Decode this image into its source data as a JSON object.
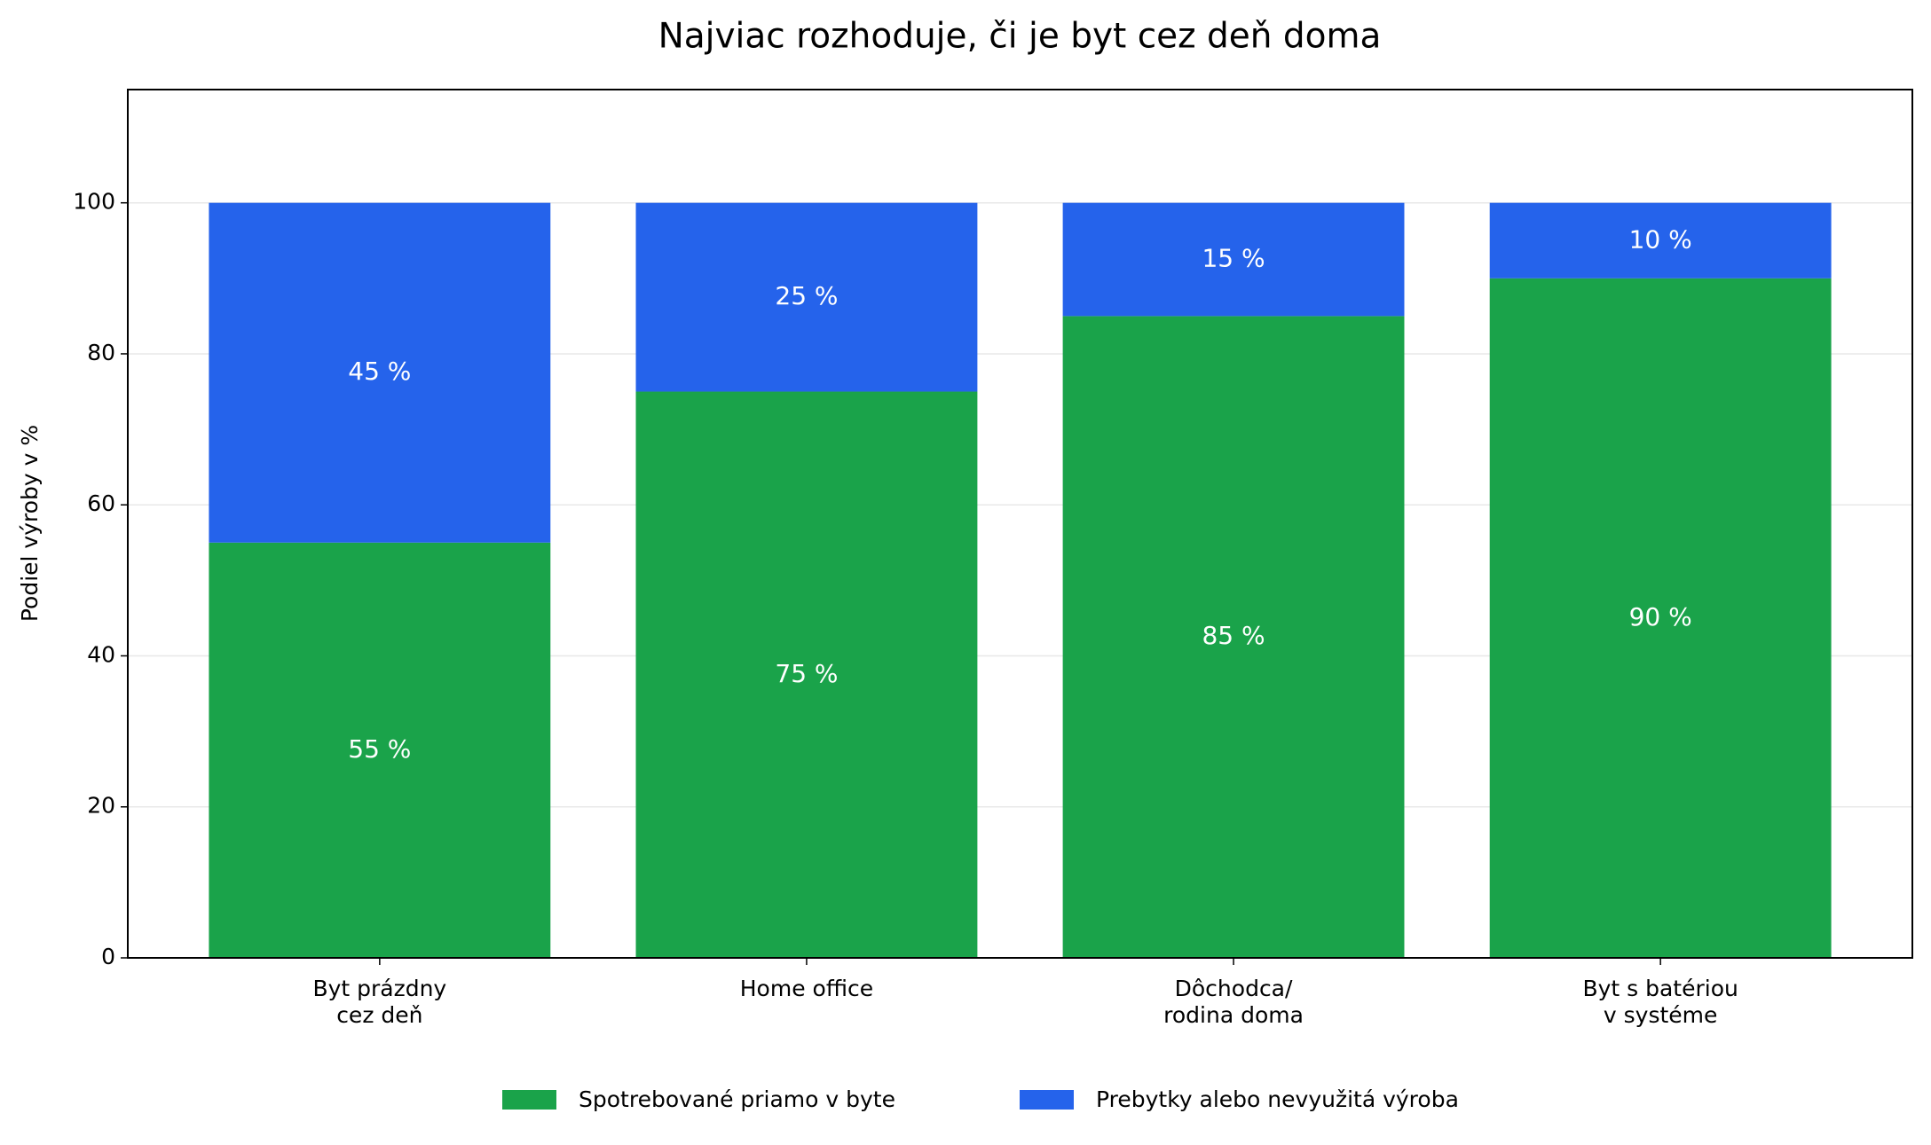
{
  "chart_data": {
    "type": "stacked_bar",
    "title": "Najviac rozhoduje, či je byt cez deň doma",
    "ylabel": "Podiel výroby v %",
    "categories": [
      "Byt prázdny\ncez deň",
      "Home office",
      "Dôchodca/\nrodina doma",
      "Byt s batériou\nv systéme"
    ],
    "series": [
      {
        "name": "Spotrebované priamo v byte",
        "color": "#1aa34a",
        "values": [
          55,
          75,
          85,
          90
        ],
        "value_labels": [
          "55 %",
          "75 %",
          "85 %",
          "90 %"
        ]
      },
      {
        "name": "Prebytky alebo nevyužitá výroba",
        "color": "#2563eb",
        "values": [
          45,
          25,
          15,
          10
        ],
        "value_labels": [
          "45 %",
          "25 %",
          "15 %",
          "10 %"
        ]
      }
    ],
    "ylim": [
      0,
      115
    ],
    "yticks": [
      0,
      20,
      40,
      60,
      80,
      100
    ],
    "grid": true,
    "legend": "bottom"
  }
}
